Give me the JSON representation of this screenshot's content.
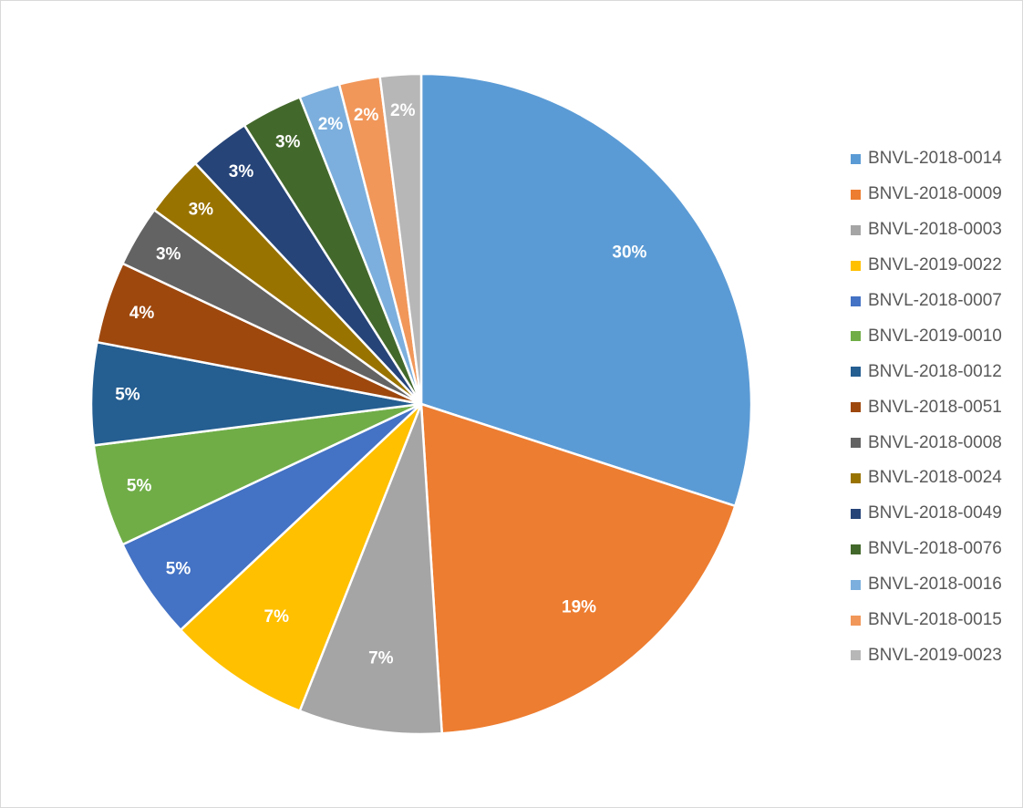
{
  "chart_data": {
    "type": "pie",
    "title": "",
    "legend_position": "right",
    "slices": [
      {
        "name": "BNVL-2018-0014",
        "value": 30,
        "label": "30%",
        "color": "#5B9BD5"
      },
      {
        "name": "BNVL-2018-0009",
        "value": 19,
        "label": "19%",
        "color": "#ED7D31"
      },
      {
        "name": "BNVL-2018-0003",
        "value": 7,
        "label": "7%",
        "color": "#A5A5A5"
      },
      {
        "name": "BNVL-2019-0022",
        "value": 7,
        "label": "7%",
        "color": "#FFC000"
      },
      {
        "name": "BNVL-2018-0007",
        "value": 5,
        "label": "5%",
        "color": "#4472C4"
      },
      {
        "name": "BNVL-2019-0010",
        "value": 5,
        "label": "5%",
        "color": "#70AD47"
      },
      {
        "name": "BNVL-2018-0012",
        "value": 5,
        "label": "5%",
        "color": "#255E91"
      },
      {
        "name": "BNVL-2018-0051",
        "value": 4,
        "label": "4%",
        "color": "#9E480E"
      },
      {
        "name": "BNVL-2018-0008",
        "value": 3,
        "label": "3%",
        "color": "#636363"
      },
      {
        "name": "BNVL-2018-0024",
        "value": 3,
        "label": "3%",
        "color": "#997300"
      },
      {
        "name": "BNVL-2018-0049",
        "value": 3,
        "label": "3%",
        "color": "#264478"
      },
      {
        "name": "BNVL-2018-0076",
        "value": 3,
        "label": "3%",
        "color": "#43682B"
      },
      {
        "name": "BNVL-2018-0016",
        "value": 2,
        "label": "2%",
        "color": "#7CAFDD"
      },
      {
        "name": "BNVL-2018-0015",
        "value": 2,
        "label": "2%",
        "color": "#F1975A"
      },
      {
        "name": "BNVL-2019-0023",
        "value": 2,
        "label": "2%",
        "color": "#B7B7B7"
      }
    ]
  }
}
